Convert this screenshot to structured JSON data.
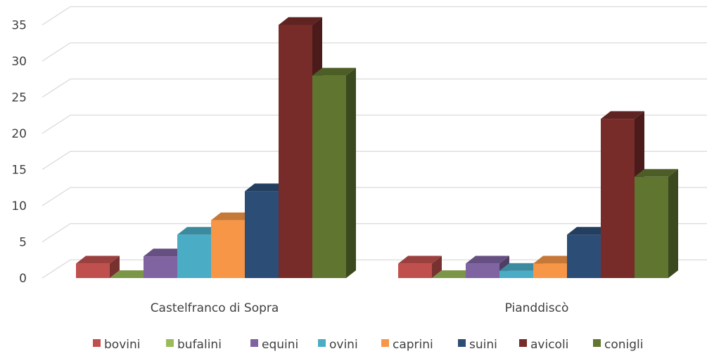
{
  "chart_data": {
    "type": "bar",
    "three_d": true,
    "categories": [
      "Castelfranco di Sopra",
      "Pianddiscò"
    ],
    "series": [
      {
        "name": "bovini",
        "values": [
          2,
          2
        ],
        "color": "#c0504d"
      },
      {
        "name": "bufalini",
        "values": [
          0,
          0
        ],
        "color": "#9bbb59"
      },
      {
        "name": "equini",
        "values": [
          3,
          2
        ],
        "color": "#8064a2"
      },
      {
        "name": "ovini",
        "values": [
          6,
          1
        ],
        "color": "#4bacc6"
      },
      {
        "name": "caprini",
        "values": [
          8,
          2
        ],
        "color": "#f79646"
      },
      {
        "name": "suini",
        "values": [
          12,
          6
        ],
        "color": "#2c4d75"
      },
      {
        "name": "avicoli",
        "values": [
          35,
          22
        ],
        "color": "#772c2a"
      },
      {
        "name": "conigli",
        "values": [
          28,
          14
        ],
        "color": "#5f7530"
      }
    ],
    "y_ticks": [
      "0",
      "5",
      "10",
      "15",
      "20",
      "25",
      "30",
      "35"
    ],
    "ylim": [
      0,
      35
    ],
    "grid": true,
    "legend": "bottom",
    "title": "",
    "xlabel": "",
    "ylabel": ""
  }
}
